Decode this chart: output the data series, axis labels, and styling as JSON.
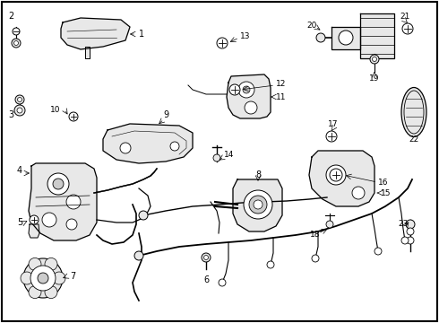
{
  "bg_color": "#ffffff",
  "border_color": "#000000",
  "fig_width": 4.9,
  "fig_height": 3.6,
  "dpi": 100,
  "lc": "#000000",
  "fs": 6.5,
  "gray": "#cccccc",
  "lgray": "#e8e8e8"
}
